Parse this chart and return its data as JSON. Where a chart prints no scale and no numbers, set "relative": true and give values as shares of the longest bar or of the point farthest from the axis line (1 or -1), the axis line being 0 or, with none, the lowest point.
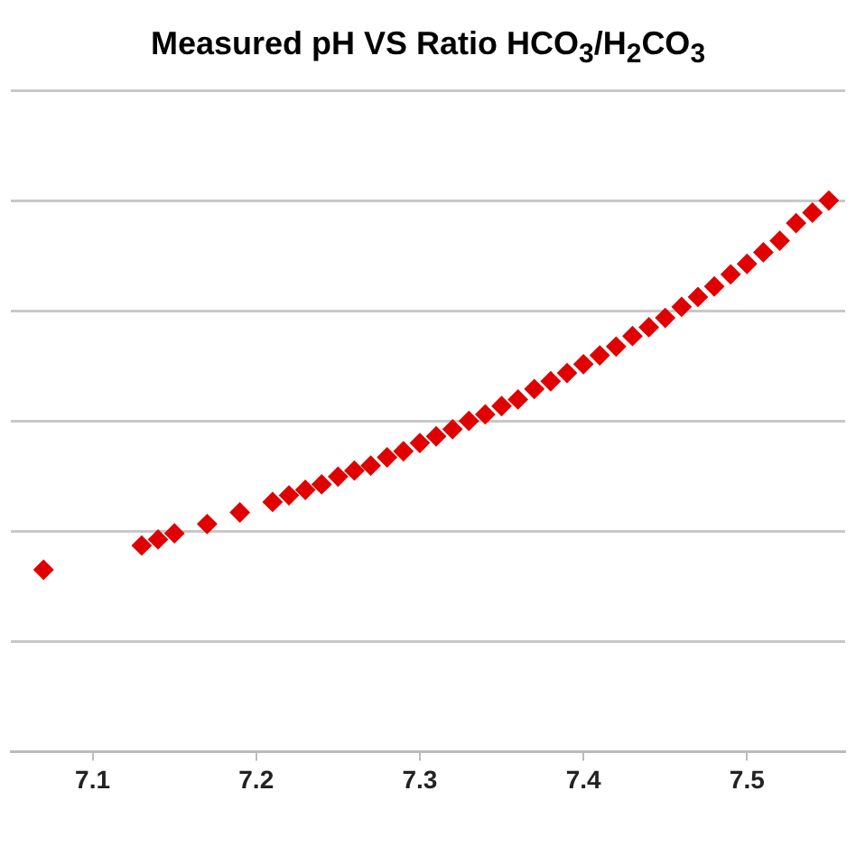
{
  "chart_data": {
    "type": "scatter",
    "title": "Measured pH  VS  Ratio  HCO$_{3}$/H$_{2}$CO$_{3}$",
    "relative": true,
    "x": [
      7.07,
      7.13,
      7.14,
      7.15,
      7.17,
      7.19,
      7.21,
      7.22,
      7.23,
      7.24,
      7.25,
      7.26,
      7.27,
      7.28,
      7.29,
      7.3,
      7.31,
      7.32,
      7.33,
      7.34,
      7.35,
      7.36,
      7.37,
      7.38,
      7.39,
      7.4,
      7.41,
      7.42,
      7.43,
      7.44,
      7.45,
      7.46,
      7.47,
      7.48,
      7.49,
      7.5,
      7.51,
      7.52,
      7.53,
      7.54,
      7.55
    ],
    "values": [
      0.33,
      0.374,
      0.385,
      0.396,
      0.413,
      0.434,
      0.453,
      0.465,
      0.475,
      0.485,
      0.499,
      0.51,
      0.519,
      0.534,
      0.545,
      0.56,
      0.572,
      0.585,
      0.6,
      0.612,
      0.627,
      0.639,
      0.658,
      0.672,
      0.687,
      0.703,
      0.719,
      0.735,
      0.754,
      0.77,
      0.787,
      0.807,
      0.825,
      0.844,
      0.866,
      0.885,
      0.906,
      0.927,
      0.959,
      0.978,
      1
    ],
    "color": "#e00000",
    "marker": "diamond",
    "grid": "y",
    "legend": false,
    "xlim": [
      7.05,
      7.56
    ],
    "xticks": [
      7.1,
      7.2,
      7.3,
      7.4,
      7.5
    ]
  }
}
